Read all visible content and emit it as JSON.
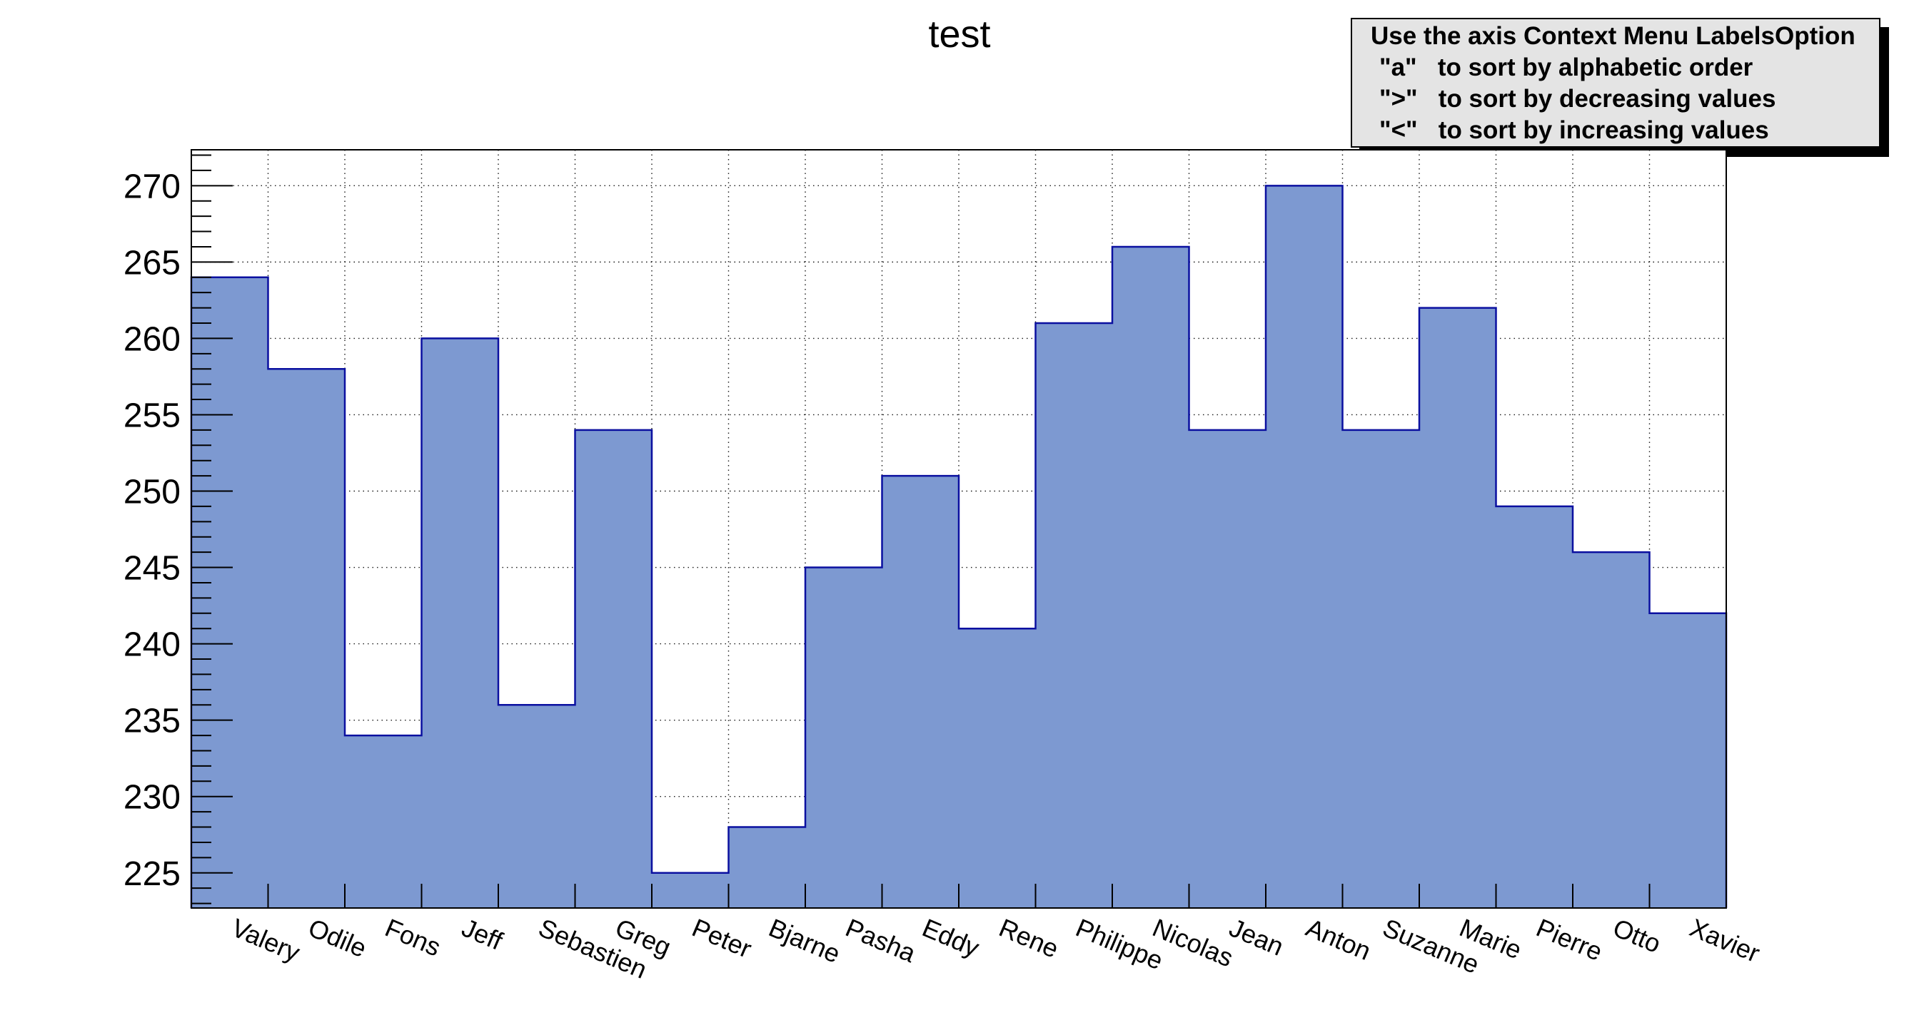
{
  "title": "test",
  "pave": {
    "lines": [
      "Use the axis Context Menu LabelsOption",
      "\"a\"   to sort by alphabetic order",
      "\">\"   to sort by decreasing values",
      "\"<\"   to sort by increasing values"
    ]
  },
  "chart_data": {
    "type": "bar",
    "style": "histogram-steps",
    "title": "test",
    "xlabel": "",
    "ylabel": "",
    "categories": [
      "Valery",
      "Odile",
      "Fons",
      "Jeff",
      "Sebastien",
      "Greg",
      "Peter",
      "Bjarne",
      "Pasha",
      "Eddy",
      "Rene",
      "Philippe",
      "Nicolas",
      "Jean",
      "Anton",
      "Suzanne",
      "Marie",
      "Pierre",
      "Otto",
      "Xavier"
    ],
    "values": [
      264,
      258,
      234,
      260,
      236,
      254,
      225,
      228,
      245,
      251,
      241,
      261,
      266,
      254,
      270,
      254,
      262,
      249,
      246,
      242
    ],
    "ylim": [
      222.7,
      272.35
    ],
    "yticks": [
      225,
      230,
      235,
      240,
      245,
      250,
      255,
      260,
      265,
      270
    ],
    "minor_tick_step": 1,
    "grid": "dotted-both-axes",
    "legend_position": "none",
    "x_label_rotation_deg": 23,
    "colors": {
      "bar_fill": "#7d99d1",
      "bar_line": "#0b10a0",
      "axis": "#000000",
      "grid_dots": "#1a1a1a",
      "pave_bg": "#e4e4e4",
      "pave_border": "#000000",
      "pave_shadow": "#000000",
      "background": "#ffffff",
      "text": "#000000"
    }
  }
}
